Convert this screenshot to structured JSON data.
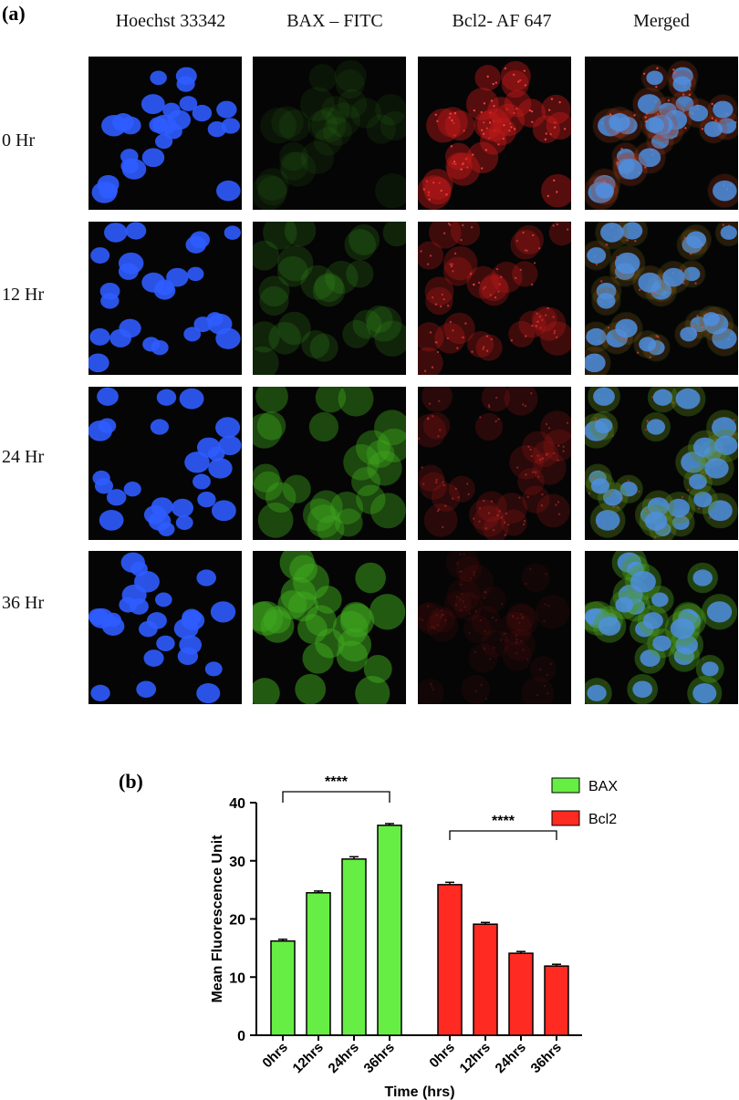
{
  "panel_a": {
    "label": "(a)",
    "columns": [
      "Hoechst 33342",
      "BAX – FITC",
      "Bcl2- AF 647",
      "Merged"
    ],
    "rows": [
      "0 Hr",
      "12 Hr",
      "24 Hr",
      "36 Hr"
    ],
    "channel_colors": {
      "hoechst": "#2f5cff",
      "fitc": "#3fa81e",
      "af647": "#c41a1a"
    },
    "bax_intensity": [
      0.18,
      0.35,
      0.75,
      0.95
    ],
    "bcl2_intensity": [
      0.85,
      0.6,
      0.38,
      0.15
    ]
  },
  "panel_b": {
    "label": "(b)"
  },
  "chart_data": {
    "type": "bar",
    "ylabel": "Mean Fluorescence Unit",
    "xlabel": "Time (hrs)",
    "ylim": [
      0,
      40
    ],
    "yticks": [
      0,
      10,
      20,
      30,
      40
    ],
    "series": [
      {
        "name": "BAX",
        "color": "#66ee44",
        "categories": [
          "0hrs",
          "12hrs",
          "24hrs",
          "36hrs"
        ],
        "values": [
          16.2,
          24.5,
          30.3,
          36.1
        ],
        "errors": [
          0.3,
          0.3,
          0.4,
          0.3
        ]
      },
      {
        "name": "Bcl2",
        "color": "#ff2a22",
        "categories": [
          "0hrs",
          "12hrs",
          "24hrs",
          "36hrs"
        ],
        "values": [
          25.9,
          19.1,
          14.1,
          11.9
        ],
        "errors": [
          0.4,
          0.3,
          0.3,
          0.3
        ]
      }
    ],
    "significance": [
      {
        "label": "****",
        "series": 0,
        "from": 0,
        "to": 3
      },
      {
        "label": "****",
        "series": 1,
        "from": 0,
        "to": 3
      }
    ],
    "legend_position": "top-right"
  }
}
